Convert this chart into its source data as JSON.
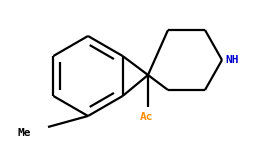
{
  "bg_color": "#ffffff",
  "line_color": "#000000",
  "text_color_black": "#000000",
  "text_color_nh": "#0000cd",
  "text_color_ac": "#ff8c00",
  "line_width": 1.6,
  "figsize": [
    2.61,
    1.55
  ],
  "dpi": 100,
  "Me_label": "Me",
  "Ac_label": "Ac",
  "NH_label": "NH"
}
